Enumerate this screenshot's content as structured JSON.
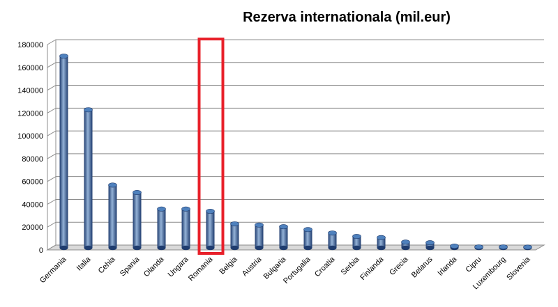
{
  "chart_data": {
    "type": "bar",
    "title": "Rezerva internationala (mil.eur)",
    "xlabel": "",
    "ylabel": "",
    "categories": [
      "Germania",
      "Italia",
      "Cehia",
      "Spania",
      "Olanda",
      "Ungara",
      "Romania",
      "Belgia",
      "Austria",
      "Bulgaria",
      "Portugalia",
      "Croatia",
      "Serbia",
      "Finlanda",
      "Grecia",
      "Belarus",
      "Irlanda",
      "Cipru",
      "Luxembourg",
      "Slovenia"
    ],
    "values": [
      168000,
      121000,
      55000,
      48500,
      34000,
      34000,
      32000,
      21000,
      20000,
      18500,
      16000,
      13000,
      10000,
      9000,
      5000,
      4500,
      1500,
      800,
      800,
      500
    ],
    "ylim": [
      0,
      180000
    ],
    "yticks": [
      "0",
      "20000",
      "40000",
      "60000",
      "80000",
      "100000",
      "120000",
      "140000",
      "160000",
      "180000"
    ],
    "grid": true,
    "legend": "none",
    "highlighted_category": "Romania",
    "colors": {
      "bar": "#4f81bd",
      "bar_dark": "#1f3c6e",
      "bar_light": "#95b3d7",
      "highlight_box": "#e8202a",
      "grid": "#8c8c8c",
      "floor": "#d9d9d9"
    }
  }
}
